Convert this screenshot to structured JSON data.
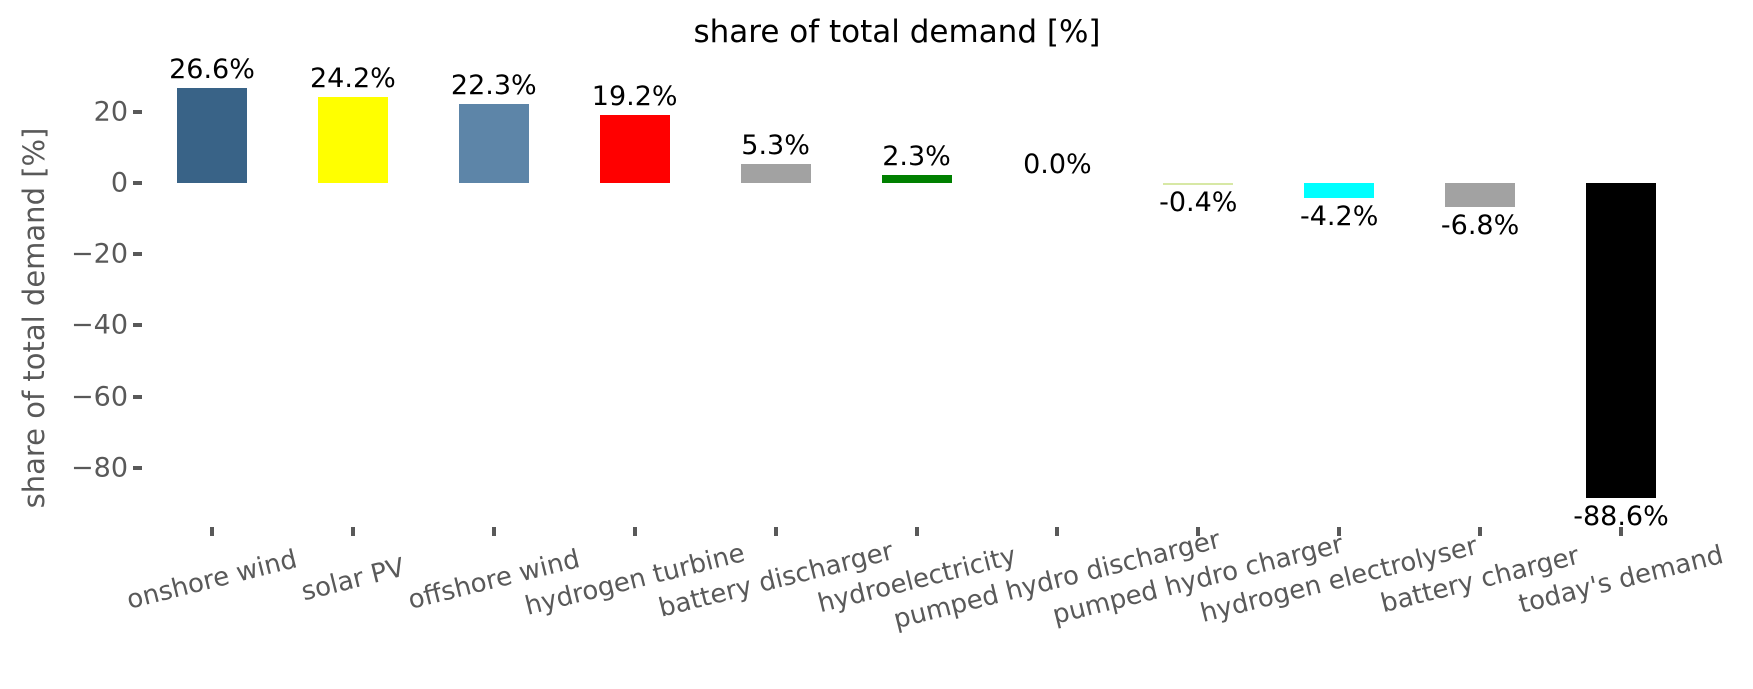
{
  "title": "share of total demand [%]",
  "axes": {
    "ylabel": "share of total demand [%]",
    "ytick_labels": [
      "20",
      "0",
      "−20",
      "−40",
      "−60",
      "−80"
    ],
    "text_color": "#595959",
    "value_label_color": "#000000"
  },
  "chart_data": {
    "type": "bar",
    "title": "share of total demand [%]",
    "xlabel": "",
    "ylabel": "share of total demand [%]",
    "categories": [
      "onshore wind",
      "solar PV",
      "offshore wind",
      "hydrogen turbine",
      "battery discharger",
      "hydroelectricity",
      "pumped hydro discharger",
      "pumped hydro charger",
      "hydrogen electrolyser",
      "battery charger",
      "today's demand"
    ],
    "values": [
      26.6,
      24.2,
      22.3,
      19.2,
      5.3,
      2.3,
      0.0,
      -0.4,
      -4.2,
      -6.8,
      -88.6
    ],
    "value_labels": [
      "26.6%",
      "24.2%",
      "22.3%",
      "19.2%",
      "5.3%",
      "2.3%",
      "0.0%",
      "-0.4%",
      "-4.2%",
      "-6.8%",
      "-88.6%"
    ],
    "bar_colors": [
      "#396387",
      "#ffff00",
      "#5d85a8",
      "#ff0000",
      "#a2a2a2",
      "#008000",
      "#d7e8a5",
      "#d7e8a5",
      "#00ffff",
      "#a2a2a2",
      "#000000"
    ],
    "yticks": [
      20,
      0,
      -20,
      -40,
      -60,
      -80
    ],
    "ylim": [
      -97,
      34
    ],
    "grid": false,
    "legend": null,
    "xtick_rotation_deg": 14
  }
}
